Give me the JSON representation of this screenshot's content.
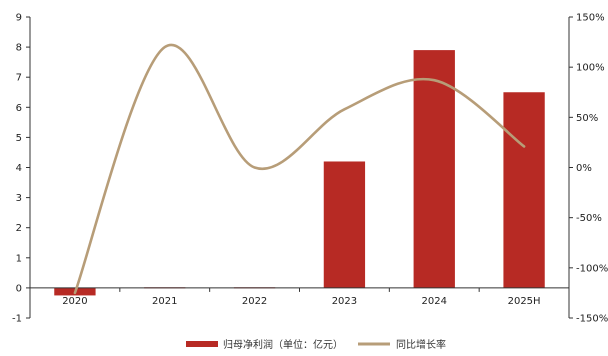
{
  "chart_data": {
    "type": "bar+line",
    "categories": [
      "2020",
      "2021",
      "2022",
      "2023",
      "2024",
      "2025H"
    ],
    "series": [
      {
        "name": "归母净利润（单位：亿元）",
        "kind": "bar",
        "axis": "left",
        "color": "#b72a24",
        "values": [
          -0.25,
          0.02,
          0.02,
          4.2,
          7.9,
          6.5
        ]
      },
      {
        "name": "同比增长率",
        "kind": "line",
        "axis": "right",
        "color": "#b79d78",
        "values": [
          -125,
          120,
          0,
          58,
          87,
          21
        ]
      }
    ],
    "y_left": {
      "min": -1,
      "max": 9,
      "ticks": [
        "-1",
        "0",
        "1",
        "2",
        "3",
        "4",
        "5",
        "6",
        "7",
        "8",
        "9"
      ]
    },
    "y_right": {
      "min": -150,
      "max": 150,
      "ticks": [
        "-150%",
        "-100%",
        "-50%",
        "0%",
        "50%",
        "100%",
        "150%"
      ]
    },
    "grid": false,
    "legend_position": "bottom"
  }
}
